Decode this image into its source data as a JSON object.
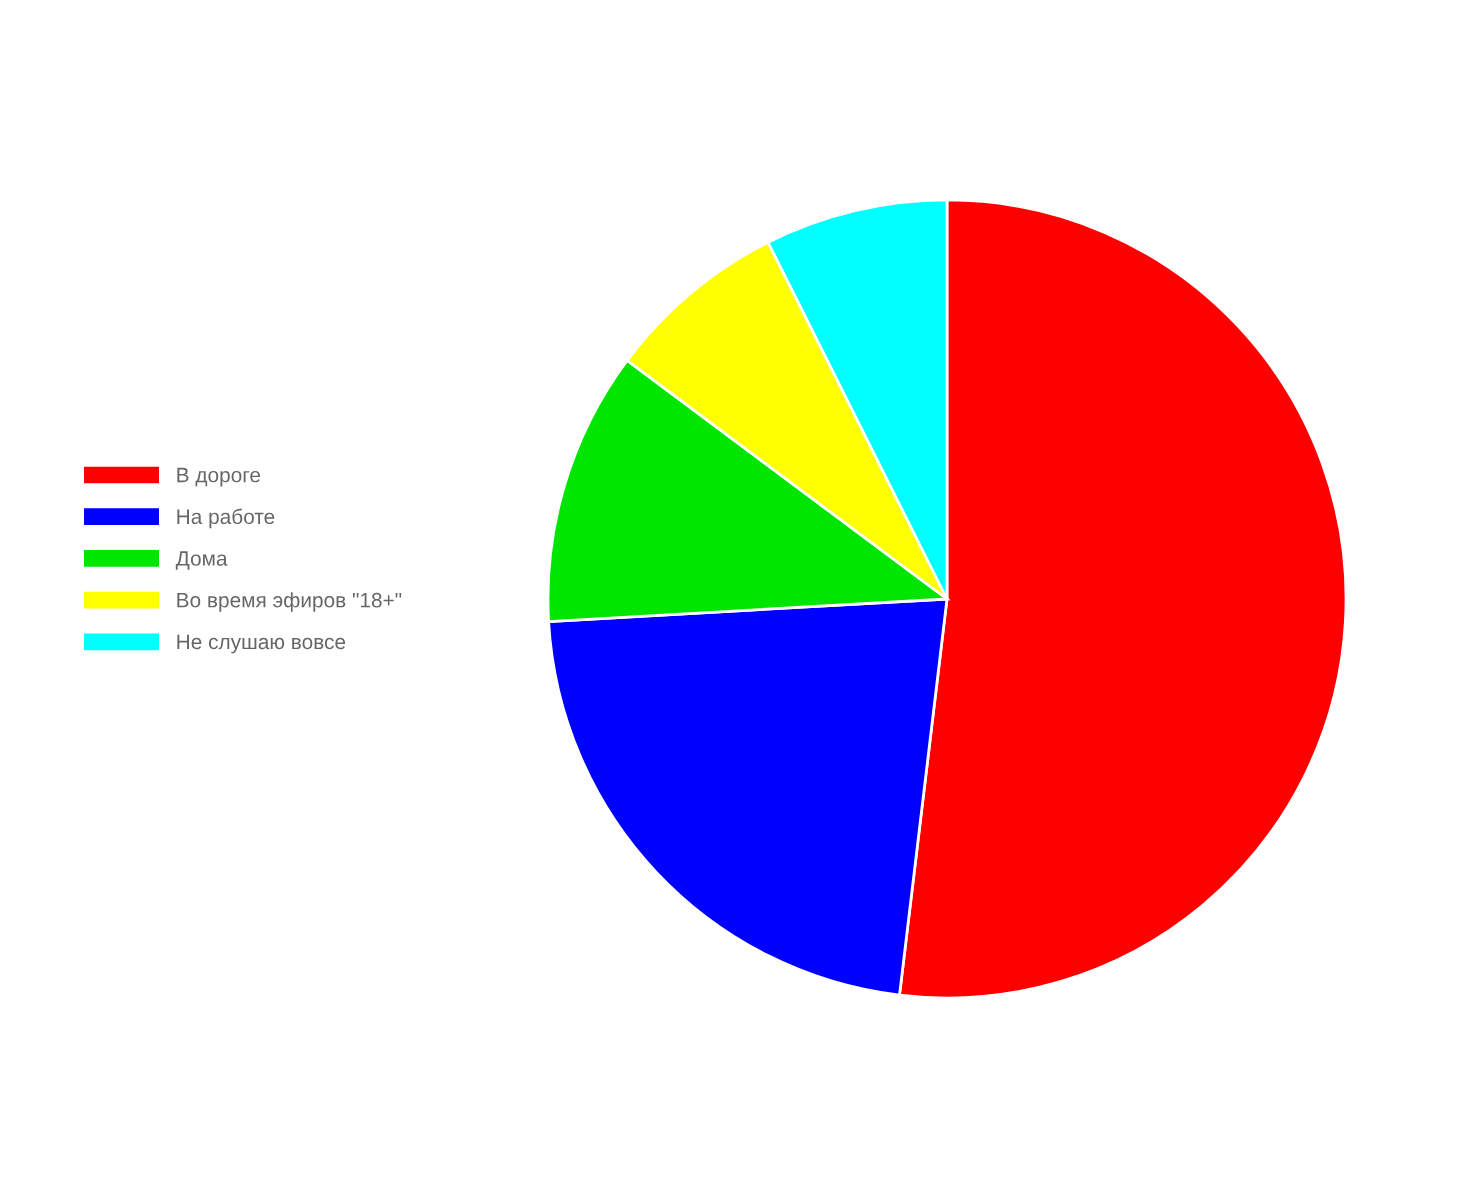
{
  "chart_data": {
    "type": "pie",
    "categories": [
      "В дороге",
      "На работе",
      "Дома",
      "Во время эфиров \"18+\"",
      "Не слушаю вовсе"
    ],
    "values": [
      51.9,
      22.2,
      11.1,
      7.4,
      7.4
    ],
    "colors": [
      "#ff0000",
      "#0000ff",
      "#00e600",
      "#ffff00",
      "#00ffff"
    ],
    "legend": "left"
  }
}
